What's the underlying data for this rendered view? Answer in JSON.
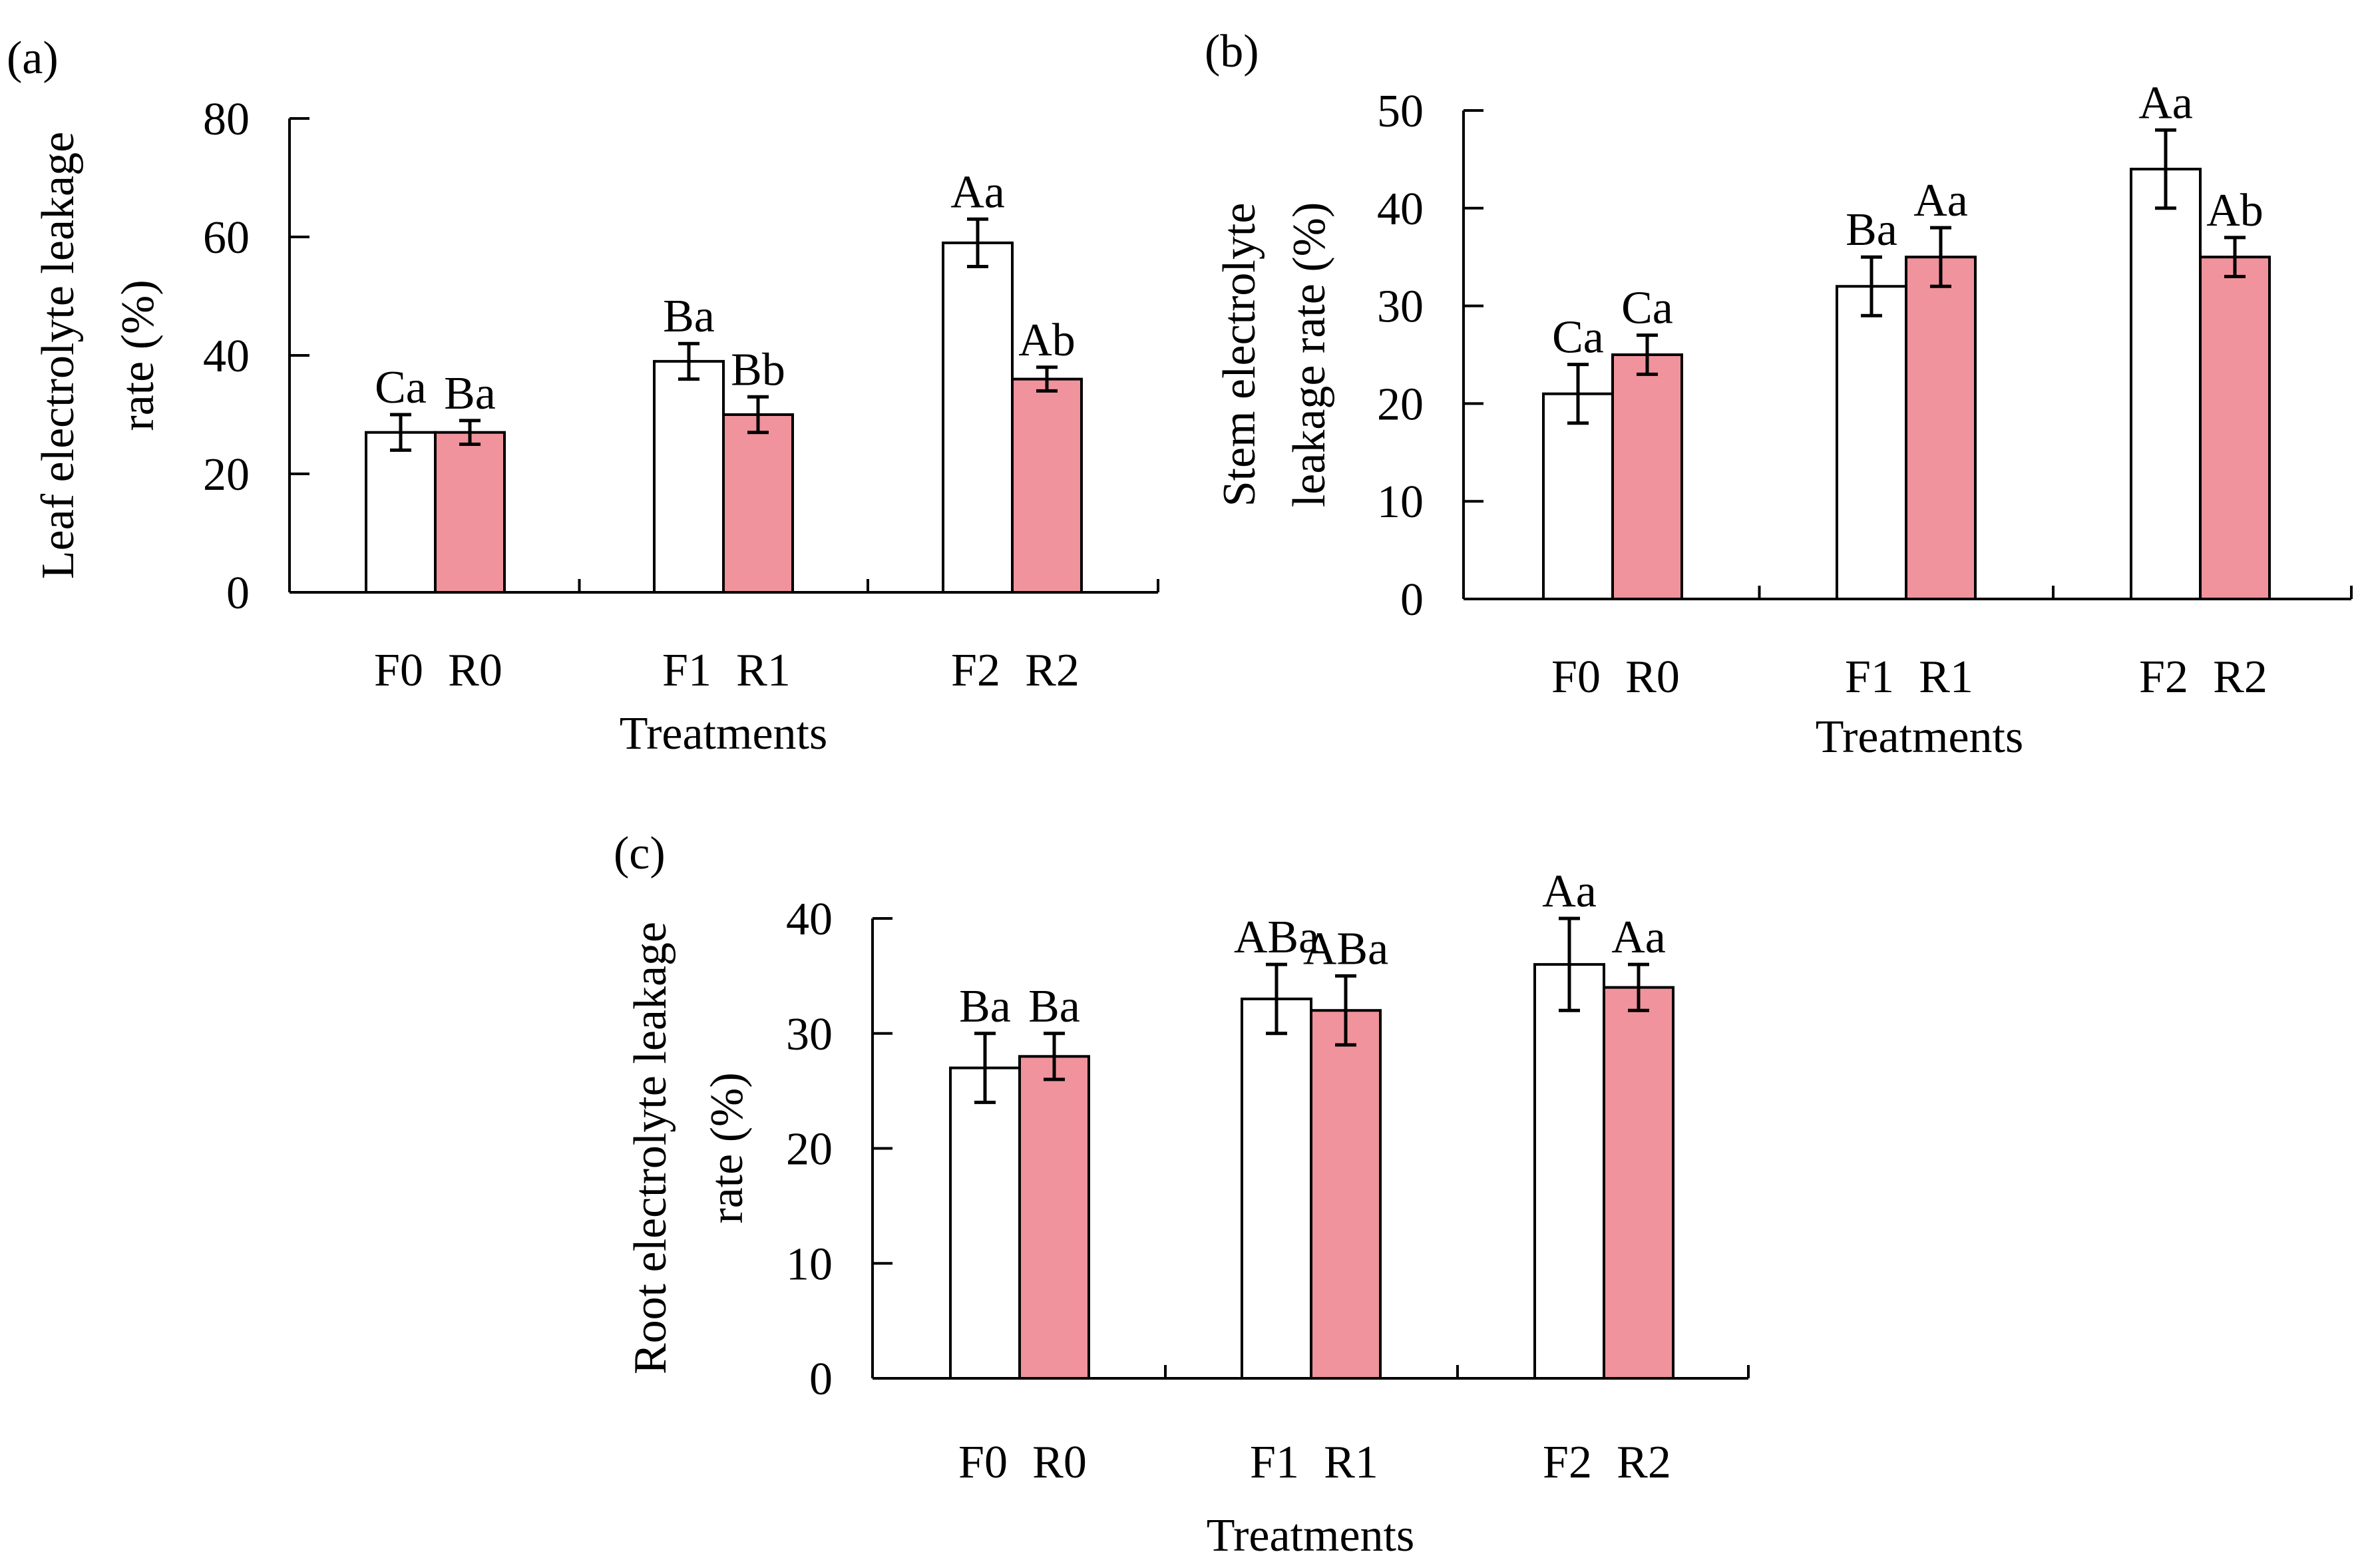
{
  "colors": {
    "bar_f": "#ffffff",
    "bar_r": "#f0939c",
    "stroke": "#000000"
  },
  "chart_data": [
    {
      "type": "bar",
      "panel_label": "(a)",
      "ylabel_lines": [
        "Leaf electrolyte leakage",
        "rate (%)"
      ],
      "xlabel": "Treatments",
      "ylim": [
        0,
        80
      ],
      "yticks": [
        0,
        20,
        40,
        60,
        80
      ],
      "bars": [
        {
          "label": "F0",
          "group": "F",
          "value": 27,
          "error": 3,
          "letter": "Ca"
        },
        {
          "label": "R0",
          "group": "R",
          "value": 27,
          "error": 2,
          "letter": "Ba"
        },
        {
          "label": "F1",
          "group": "F",
          "value": 39,
          "error": 3,
          "letter": "Ba"
        },
        {
          "label": "R1",
          "group": "R",
          "value": 30,
          "error": 3,
          "letter": "Bb"
        },
        {
          "label": "F2",
          "group": "F",
          "value": 59,
          "error": 4,
          "letter": "Aa"
        },
        {
          "label": "R2",
          "group": "R",
          "value": 36,
          "error": 2,
          "letter": "Ab"
        }
      ]
    },
    {
      "type": "bar",
      "panel_label": "(b)",
      "ylabel_lines": [
        "Stem electrolyte",
        "leakage rate (%)"
      ],
      "xlabel": "Treatments",
      "ylim": [
        0,
        50
      ],
      "yticks": [
        0,
        10,
        20,
        30,
        40,
        50
      ],
      "bars": [
        {
          "label": "F0",
          "group": "F",
          "value": 21,
          "error": 3,
          "letter": "Ca"
        },
        {
          "label": "R0",
          "group": "R",
          "value": 25,
          "error": 2,
          "letter": "Ca"
        },
        {
          "label": "F1",
          "group": "F",
          "value": 32,
          "error": 3,
          "letter": "Ba"
        },
        {
          "label": "R1",
          "group": "R",
          "value": 35,
          "error": 3,
          "letter": "Aa"
        },
        {
          "label": "F2",
          "group": "F",
          "value": 44,
          "error": 4,
          "letter": "Aa"
        },
        {
          "label": "R2",
          "group": "R",
          "value": 35,
          "error": 2,
          "letter": "Ab"
        }
      ]
    },
    {
      "type": "bar",
      "panel_label": "(c)",
      "ylabel_lines": [
        "Root electrolyte leakage",
        "rate (%)"
      ],
      "xlabel": "Treatments",
      "ylim": [
        0,
        40
      ],
      "yticks": [
        0,
        10,
        20,
        30,
        40
      ],
      "bars": [
        {
          "label": "F0",
          "group": "F",
          "value": 27,
          "error": 3,
          "letter": "Ba"
        },
        {
          "label": "R0",
          "group": "R",
          "value": 28,
          "error": 2,
          "letter": "Ba"
        },
        {
          "label": "F1",
          "group": "F",
          "value": 33,
          "error": 3,
          "letter": "ABa"
        },
        {
          "label": "R1",
          "group": "R",
          "value": 32,
          "error": 3,
          "letter": "ABa"
        },
        {
          "label": "F2",
          "group": "F",
          "value": 36,
          "error": 4,
          "letter": "Aa"
        },
        {
          "label": "R2",
          "group": "R",
          "value": 34,
          "error": 2,
          "letter": "Aa"
        }
      ]
    }
  ]
}
